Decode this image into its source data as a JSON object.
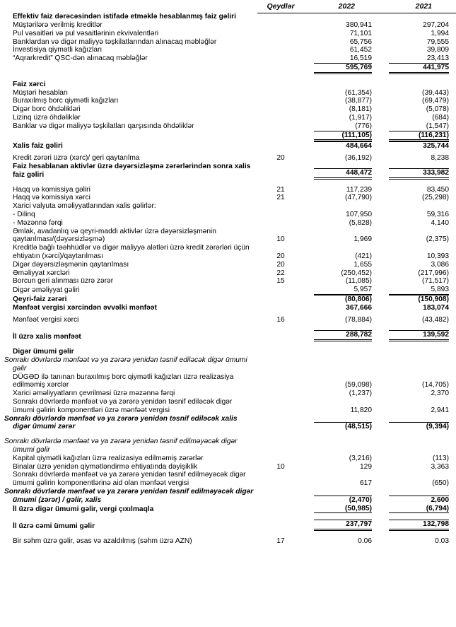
{
  "header": {
    "columns": [
      "Qeydlər",
      "2022",
      "2021"
    ]
  },
  "rows": [
    {
      "label": "Effektiv faiz dərəcəsindən istifadə etməklə hesablanmış faiz gəliri"
    },
    {
      "label": "Müştərilərə verilmiş kreditlər",
      "values": [
        "380,941",
        "297,204"
      ]
    },
    {
      "label": "Pul vəsaitləri və pul vəsaitlərinin ekvivalentləri",
      "values": [
        "71,101",
        "1,994"
      ]
    },
    {
      "label": "Banklardan və digər maliyyə təşkilatlarından alınacaq məbləğlər",
      "values": [
        "65,756",
        "79,555"
      ]
    },
    {
      "label": "İnvestisiya qiymətli kağızları",
      "values": [
        "61,452",
        "39,809"
      ]
    },
    {
      "label": "“Aqrarkredit” QSC-dən alınacaq məbləğlər",
      "values": [
        "16,519",
        "23,413"
      ]
    },
    {
      "values": [
        "595,769",
        "441,975"
      ]
    },
    {
      "label": "Faiz xərci"
    },
    {
      "label": "Müştəri hesabları",
      "values": [
        "(61,354)",
        "(39,443)"
      ]
    },
    {
      "label": "Buraxılmış borc qiymətli kağızları",
      "values": [
        "(38,877)",
        "(69,479)"
      ]
    },
    {
      "label": "Digər borc öhdəlikləri",
      "values": [
        "(8,181)",
        "(5,078)"
      ]
    },
    {
      "label": "Lizinq üzrə öhdəliklər",
      "values": [
        "(1,917)",
        "(684)"
      ]
    },
    {
      "label": "Banklar və digər maliyyə təşkilatları qarşısında öhdəliklər",
      "values": [
        "(776)",
        "(1,547)"
      ]
    },
    {
      "values": [
        "(111,105)",
        "(116,231)"
      ]
    },
    {
      "label": "Xalis faiz gəliri",
      "values": [
        "484,664",
        "325,744"
      ]
    },
    {
      "label": "Kredit zərəri üzrə (xərc)/ geri qaytarılma",
      "note": "20",
      "values": [
        "(36,192)",
        "8,238"
      ]
    },
    {
      "label": "Faiz hesablanan aktivlər üzrə dəyərsizləşmə zərərlərindən sonra xalis faiz gəliri",
      "values": [
        "448,472",
        "333,982"
      ]
    },
    {
      "label": "Haqq və komissiya gəliri",
      "note": "21",
      "values": [
        "117,239",
        "83,450"
      ]
    },
    {
      "label": "Haqq və komissiya xərci",
      "note": "21",
      "values": [
        "(47,790)",
        "(25,298)"
      ]
    },
    {
      "label": "Xarici valyuta əməliyyatlarından xalis gəlirlər:"
    },
    {
      "label": "- Dilinq",
      "values": [
        "107,950",
        "59,316"
      ]
    },
    {
      "label": "- Məzənnə fərqi",
      "values": [
        "(5,828)",
        "4,140"
      ]
    },
    {
      "label": "Əmlak, avadanlıq və qeyri-maddi aktivlər üzrə dəyərsizləşmənin qaytarılması/(dəyərsizləşmə)",
      "note": "10",
      "values": [
        "1,969",
        "(2,375)"
      ]
    },
    {
      "label": "Kreditlə bağlı təəhhüdlər və digər maliyyə alətləri üzrə kredit zərərləri üçün ehtiyatın (xərci)/qaytarılması",
      "note": "20",
      "values": [
        "(421)",
        "10,393"
      ]
    },
    {
      "label": "Digər dəyərsizləşmənin qaytarılması",
      "note": "20",
      "values": [
        "1,655",
        "3,086"
      ]
    },
    {
      "label": "Əməliyyat xərcləri",
      "note": "22",
      "values": [
        "(250,452)",
        "(217,996)"
      ]
    },
    {
      "label": "Borcun geri alınması üzrə zərər",
      "note": "15",
      "values": [
        "(11,085)",
        "(71,517)"
      ]
    },
    {
      "label": "Digər əməliyyat gəliri",
      "values": [
        "5,957",
        "5,893"
      ]
    },
    {
      "label": "Qeyri-faiz zərəri",
      "values": [
        "(80,806)",
        "(150,908)"
      ]
    },
    {
      "label": "Mənfəət vergisi xərcindən əvvəlki mənfəət",
      "values": [
        "367,666",
        "183,074"
      ]
    },
    {
      "label": "Mənfəət vergisi xərci",
      "note": "16",
      "values": [
        "(78,884)",
        "(43,482)"
      ]
    },
    {
      "label": "İl üzrə xalis mənfəət",
      "values": [
        "288,782",
        "139,592"
      ]
    },
    {
      "label": "Digər ümumi gəlir"
    },
    {
      "label": "Sonrakı dövrlərdə mənfəət və ya zərərə yenidən təsnif ediləcək digər ümumi gəlir"
    },
    {
      "label": "DÜGƏD ilə tanınan buraxılmış borc qiymətli kağızları üzrə realizasiya edilməmiş xərclər",
      "values": [
        "(59,098)",
        "(14,705)"
      ]
    },
    {
      "label": "Xarici əməliyyatların çevrilməsi üzrə məzənnə fərqi",
      "values": [
        "(1,237)",
        "2,370"
      ]
    },
    {
      "label": "Sonrakı dövrlərdə mənfəət və ya zərərə yenidən təsnif ediləcək digər ümumi gəlirin komponentləri üzrə mənfəət vergisi",
      "values": [
        "11,820",
        "2,941"
      ]
    },
    {
      "label": "Sonrakı dövrlərdə mənfəət və ya zərərə yenidən təsnif ediləcək xalis digər ümumi zərər",
      "values": [
        "(48,515)",
        "(9,394)"
      ]
    },
    {
      "label": "Sonrakı dövrlərdə mənfəət və ya zərərə yenidən təsnif edilməyəcək digər ümumi gəlir"
    },
    {
      "label": "Kapital qiymətli kağızları üzrə realizasiya edilməmiş zərərlər",
      "values": [
        "(3,216)",
        "(113)"
      ]
    },
    {
      "label": "Binalar üzrə yenidən qiymətləndirmə ehtiyatında dəyişiklik",
      "note": "10",
      "values": [
        "129",
        "3,363"
      ]
    },
    {
      "label": "Sonrakı dövrlərdə mənfəət və ya zərərə yenidən təsnif edilməyəcək digər ümumi gəlirin komponentlərinə aid olan mənfəət vergisi",
      "values": [
        "617",
        "(650)"
      ]
    },
    {
      "label": "Sonrakı dövrlərdə mənfəət və ya zərərə yenidən təsnif edilməyəcək digər ümumi (zərər) / gəlir, xalis",
      "values": [
        "(2,470)",
        "2,600"
      ]
    },
    {
      "label": "İl üzrə digər ümumi gəlir, vergi çıxılmaqla",
      "values": [
        "(50,985)",
        "(6,794)"
      ]
    },
    {
      "label": "İl üzrə cəmi ümumi gəlir",
      "values": [
        "237,797",
        "132,798"
      ]
    },
    {
      "label": "Bir səhm üzrə gəlir, əsas və azaldılmış (səhm üzrə AZN)",
      "note": "17",
      "values": [
        "0.06",
        "0.03"
      ]
    }
  ]
}
